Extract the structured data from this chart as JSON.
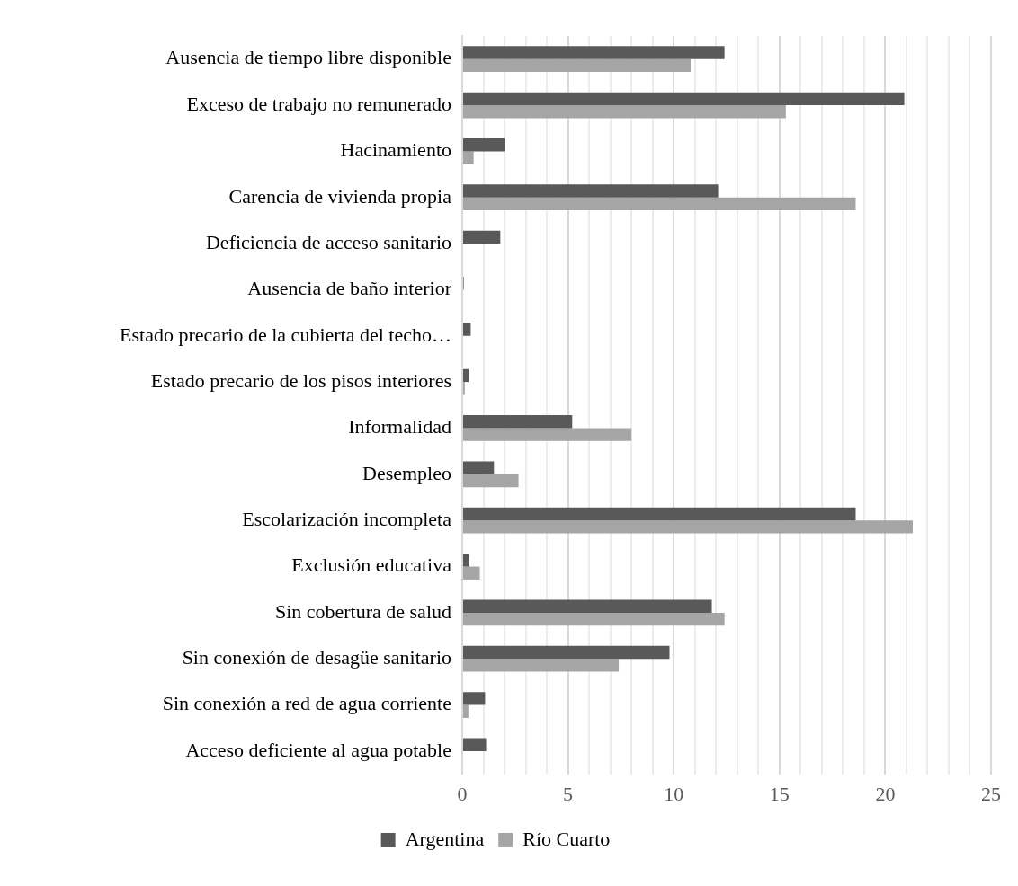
{
  "chart_data": {
    "type": "bar",
    "orientation": "horizontal",
    "categories": [
      "Ausencia de tiempo libre disponible",
      "Exceso de trabajo no remunerado",
      "Hacinamiento",
      "Carencia de vivienda propia",
      "Deficiencia de acceso sanitario",
      "Ausencia de baño interior",
      "Estado precario de la cubierta del techo…",
      "Estado precario de los pisos interiores",
      "Informalidad",
      "Desempleo",
      "Escolarización incompleta",
      "Exclusión educativa",
      "Sin cobertura de salud",
      "Sin conexión de desagüe sanitario",
      "Sin conexión a red de agua corriente",
      "Acceso deficiente al agua potable"
    ],
    "series": [
      {
        "name": "Argentina",
        "color": "#595959",
        "values": [
          12.4,
          20.9,
          2.0,
          12.1,
          1.8,
          0.07,
          0.4,
          0.3,
          5.2,
          1.5,
          18.6,
          0.34,
          11.8,
          9.8,
          1.08,
          1.13
        ]
      },
      {
        "name": "Río Cuarto",
        "color": "#a5a5a5",
        "values": [
          10.8,
          15.3,
          0.54,
          18.6,
          0,
          0,
          0,
          0.12,
          8.0,
          2.66,
          21.3,
          0.83,
          12.4,
          7.4,
          0.29,
          0
        ]
      }
    ],
    "xlim": [
      0,
      25
    ],
    "xticks": [
      0,
      {
        "value": 1,
        "label": null
      },
      {
        "value": 2,
        "label": null
      },
      {
        "value": 3,
        "label": null
      },
      {
        "value": 4,
        "label": null
      },
      5,
      {
        "value": 6,
        "label": null
      },
      {
        "value": 7,
        "label": null
      },
      {
        "value": 8,
        "label": null
      },
      {
        "value": 9,
        "label": null
      },
      10,
      {
        "value": 11,
        "label": null
      },
      {
        "value": 12,
        "label": null
      },
      {
        "value": 13,
        "label": null
      },
      {
        "value": 14,
        "label": null
      },
      15,
      {
        "value": 16,
        "label": null
      },
      {
        "value": 17,
        "label": null
      },
      {
        "value": 18,
        "label": null
      },
      {
        "value": 19,
        "label": null
      },
      20,
      {
        "value": 21,
        "label": null
      },
      {
        "value": 22,
        "label": null
      },
      {
        "value": 23,
        "label": null
      },
      {
        "value": 24,
        "label": null
      },
      25
    ],
    "grid": "x",
    "legend": "bottom"
  }
}
